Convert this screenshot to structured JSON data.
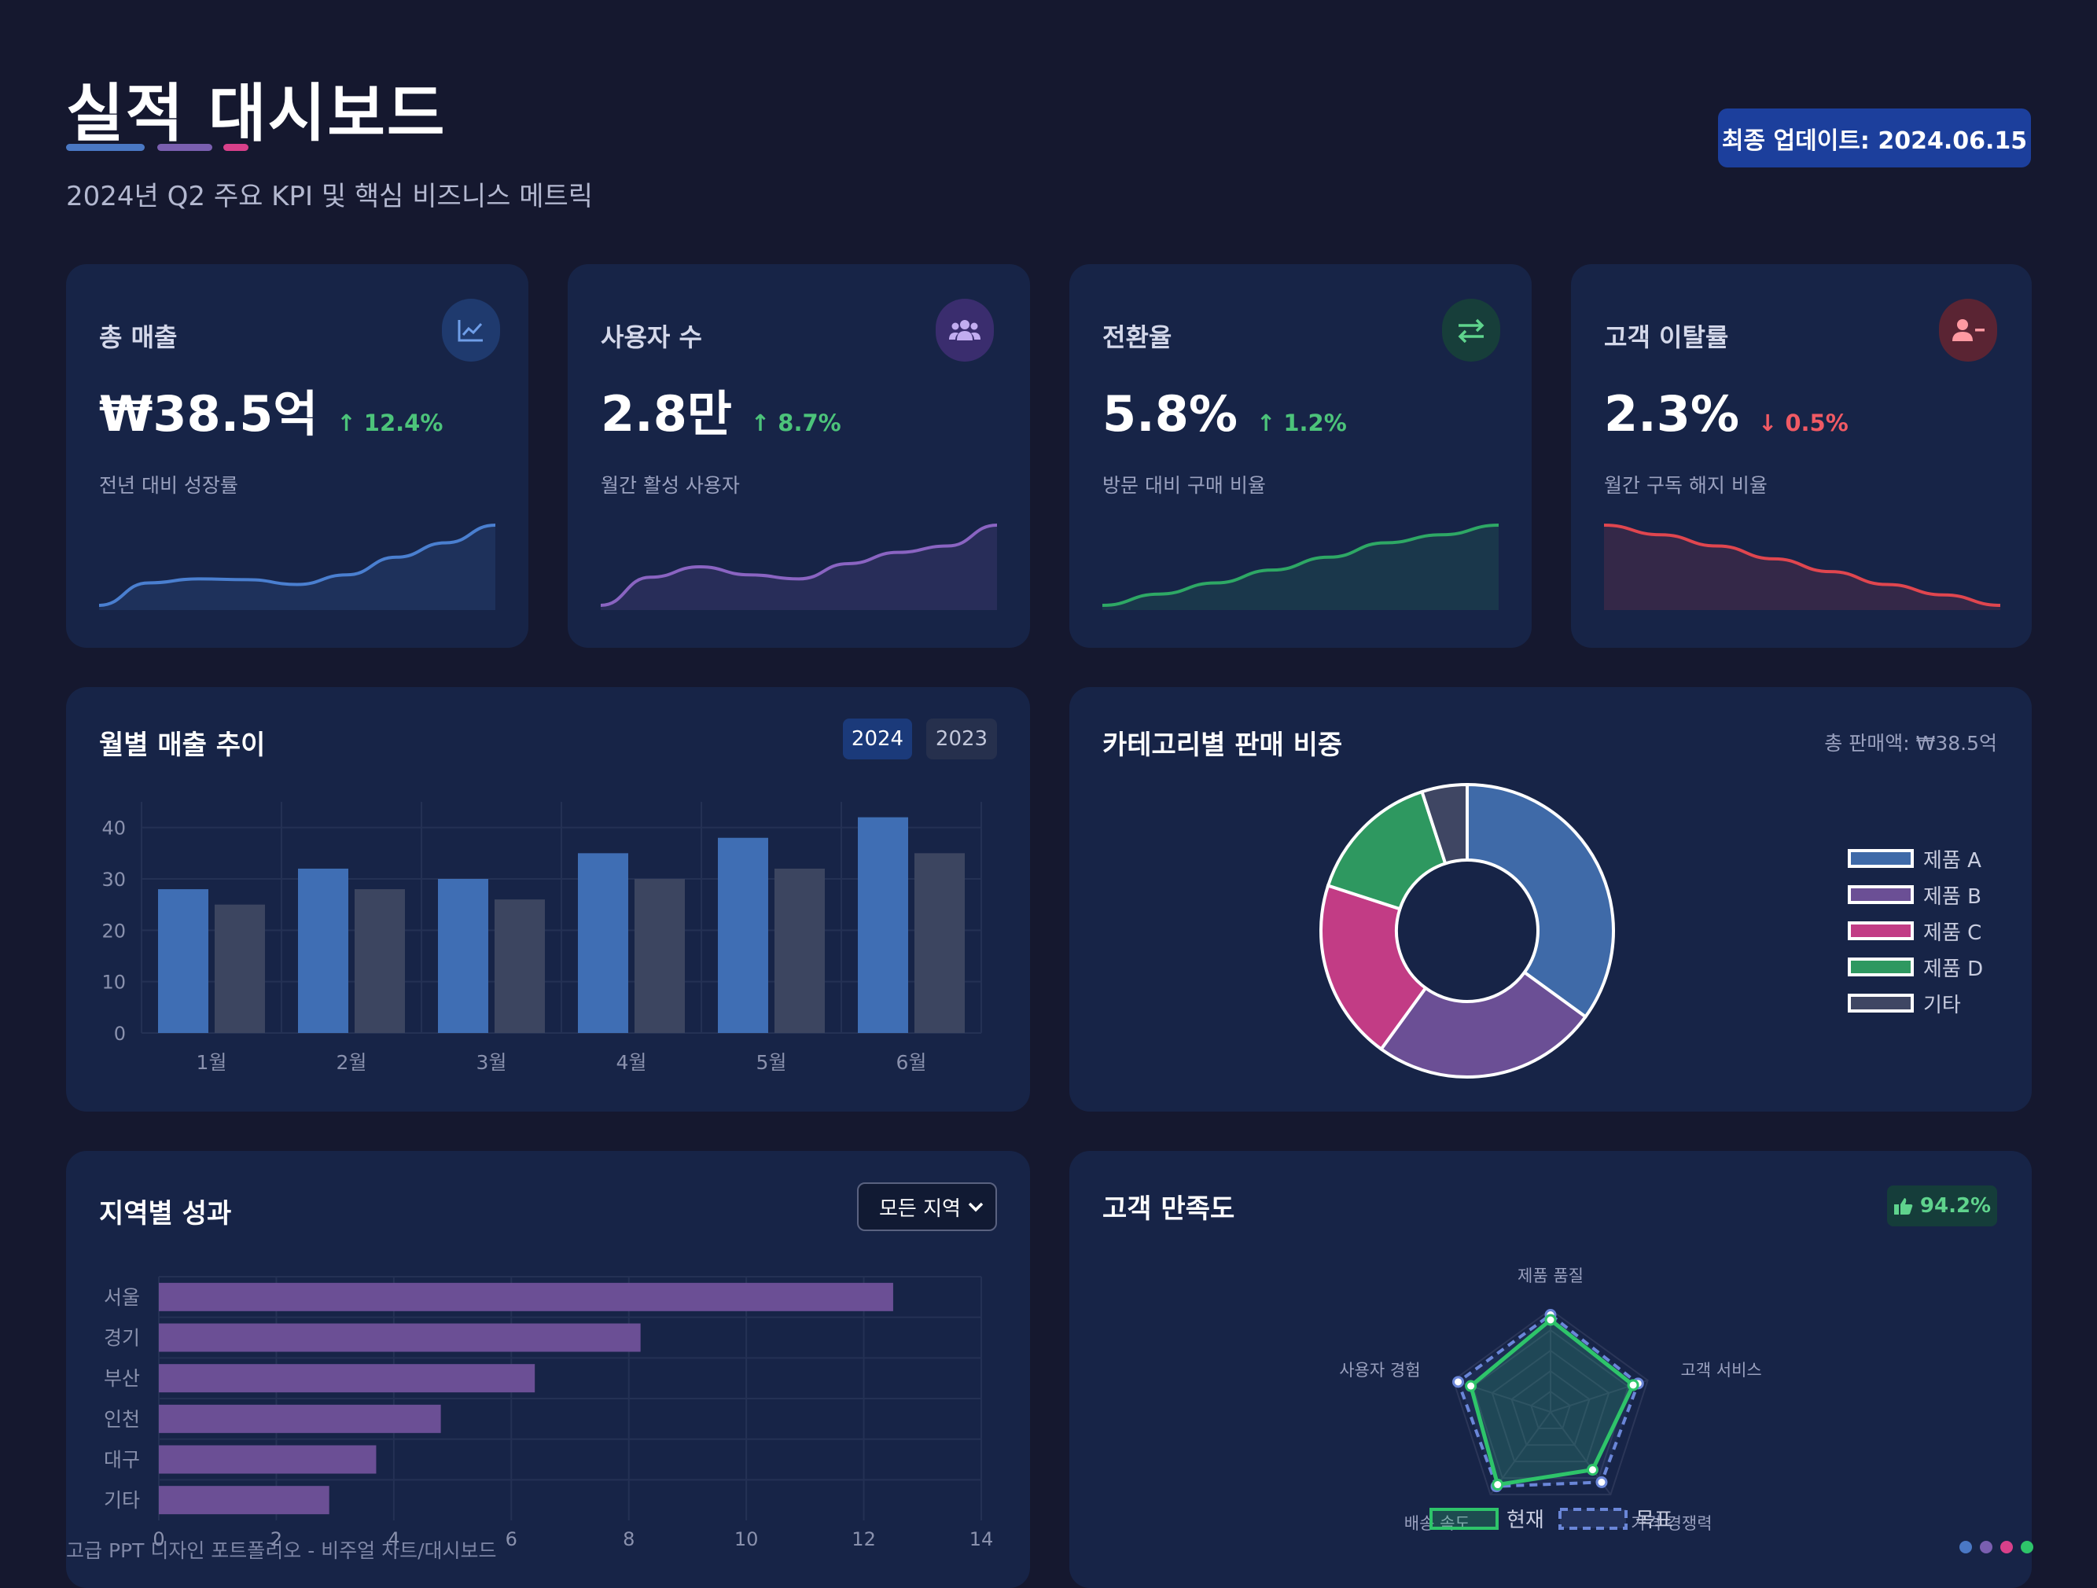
{
  "header": {
    "title": "실적 대시보드",
    "subtitle": "2024년 Q2 주요 KPI 및 핵심 비즈니스 메트릭",
    "update_label": "최종 업데이트: 2024.06.15",
    "accent_colors": [
      "#4a78c4",
      "#7a5fb0",
      "#d8408a"
    ]
  },
  "kpis": [
    {
      "label": "총 매출",
      "value": "₩38.5억",
      "change": "↑ 12.4%",
      "trend": "up",
      "desc": "전년 대비 성장률",
      "icon": "chart-line-icon",
      "color": "#4a7fd0",
      "spark": [
        0.0,
        0.28,
        0.33,
        0.32,
        0.26,
        0.38,
        0.6,
        0.78,
        1.0
      ]
    },
    {
      "label": "사용자 수",
      "value": "2.8만",
      "change": "↑ 8.7%",
      "trend": "up",
      "desc": "월간 활성 사용자",
      "icon": "users-icon",
      "color": "#8a64c2",
      "spark": [
        0.0,
        0.35,
        0.48,
        0.38,
        0.33,
        0.52,
        0.66,
        0.74,
        1.0
      ]
    },
    {
      "label": "전환율",
      "value": "5.8%",
      "change": "↑ 1.2%",
      "trend": "up",
      "desc": "방문 대비 구매 비율",
      "icon": "exchange-icon",
      "color": "#2ea865",
      "spark": [
        0.0,
        0.14,
        0.28,
        0.44,
        0.6,
        0.78,
        0.88,
        1.0
      ]
    },
    {
      "label": "고객 이탈률",
      "value": "2.3%",
      "change": "↓ 0.5%",
      "trend": "down",
      "desc": "월간 구독 해지 비율",
      "icon": "user-minus-icon",
      "color": "#e0464f",
      "spark": [
        1.0,
        0.88,
        0.74,
        0.58,
        0.42,
        0.26,
        0.13,
        0.0
      ]
    }
  ],
  "monthly": {
    "title": "월별 매출 추이",
    "buttons": [
      "2024",
      "2023"
    ],
    "chart_data": {
      "type": "bar",
      "categories": [
        "1월",
        "2월",
        "3월",
        "4월",
        "5월",
        "6월"
      ],
      "series": [
        {
          "name": "2024",
          "values": [
            28,
            32,
            30,
            35,
            38,
            42
          ],
          "color": "#3f6eb4"
        },
        {
          "name": "2023",
          "values": [
            25,
            28,
            26,
            30,
            32,
            35
          ],
          "color": "#3c4560"
        }
      ],
      "yticks": [
        "0",
        "10",
        "20",
        "30",
        "40"
      ],
      "ylim": [
        0,
        45
      ],
      "grid": true
    }
  },
  "category": {
    "title": "카테고리별 판매 비중",
    "total": "총 판매액: ₩38.5억",
    "chart_data": {
      "type": "pie",
      "labels": [
        "제품 A",
        "제품 B",
        "제품 C",
        "제품 D",
        "기타"
      ],
      "values": [
        35,
        25,
        20,
        15,
        5
      ],
      "colors": [
        "#3f6aa8",
        "#6b4f95",
        "#c23c85",
        "#2e9860",
        "#3f4663"
      ],
      "legend": "right"
    }
  },
  "region": {
    "title": "지역별 성과",
    "select_value": "모든 지역",
    "chart_data": {
      "type": "bar",
      "orientation": "horizontal",
      "categories": [
        "서울",
        "경기",
        "부산",
        "인천",
        "대구",
        "기타"
      ],
      "values": [
        12.5,
        8.2,
        6.4,
        4.8,
        3.7,
        2.9
      ],
      "xticks": [
        "0",
        "2",
        "4",
        "6",
        "8",
        "10",
        "12",
        "14"
      ],
      "xlim": [
        0,
        14
      ],
      "color": "#6b4f95",
      "grid": true
    }
  },
  "satisfaction": {
    "title": "고객 만족도",
    "badge": "94.2%",
    "chart_data": {
      "type": "radar",
      "axes": [
        "제품 품질",
        "고객 서비스",
        "가격 경쟁력",
        "배송 속도",
        "사용자 경험"
      ],
      "series": [
        {
          "name": "현재",
          "values": [
            90,
            85,
            70,
            88,
            82
          ],
          "color": "#2ec46a"
        },
        {
          "name": "목표",
          "values": [
            95,
            90,
            85,
            90,
            95
          ],
          "color": "#6a86d8"
        }
      ],
      "max": 100
    }
  },
  "footer": {
    "text": "고급 PPT 디자인 포트폴리오 - 비주얼 차트/대시보드",
    "dot_colors": [
      "#4a78c4",
      "#7a5fb0",
      "#d8408a",
      "#2ec46a"
    ]
  }
}
